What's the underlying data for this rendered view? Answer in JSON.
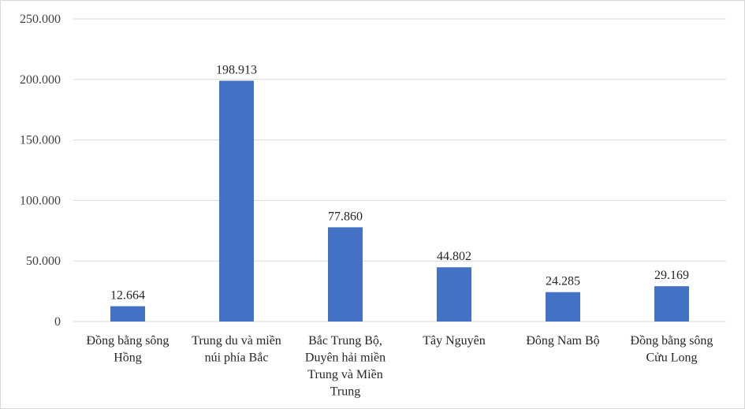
{
  "chart_data": {
    "type": "bar",
    "categories": [
      [
        "Đồng bằng sông",
        "Hồng"
      ],
      [
        "Trung du và miền",
        "núi phía Bắc"
      ],
      [
        "Bắc Trung Bộ,",
        "Duyên hải miền",
        "Trung và Miền",
        "Trung"
      ],
      [
        "Tây Nguyên"
      ],
      [
        "Đông Nam Bộ"
      ],
      [
        "Đồng bằng sông",
        "Cửu Long"
      ]
    ],
    "values": [
      12664,
      198913,
      77860,
      44802,
      24285,
      29169
    ],
    "value_labels": [
      "12.664",
      "198.913",
      "77.860",
      "44.802",
      "24.285",
      "29.169"
    ],
    "ylim": [
      0,
      250000
    ],
    "yticks": [
      0,
      50000,
      100000,
      150000,
      200000,
      250000
    ],
    "ytick_labels": [
      "0",
      "50.000",
      "100.000",
      "150.000",
      "200.000",
      "250.000"
    ],
    "grid": true,
    "bar_color": "#4472c4",
    "grid_color": "#d9d9d9",
    "title": "",
    "xlabel": "",
    "ylabel": ""
  }
}
